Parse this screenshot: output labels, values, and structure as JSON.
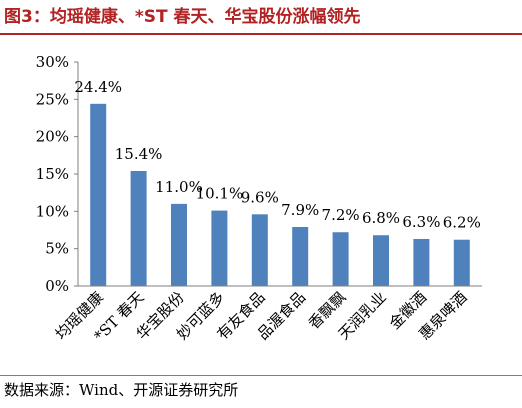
{
  "header": {
    "title": "图3：均瑶健康、*ST 春天、华宝股份涨幅领先"
  },
  "footer": {
    "source": "数据来源：Wind、开源证券研究所"
  },
  "colors": {
    "title": "#B22222",
    "rule": "#B22222",
    "bar": "#4F81BD",
    "axis": "#7F7F7F",
    "text": "#000000"
  },
  "chart_data": {
    "type": "bar",
    "categories": [
      "均瑶健康",
      "*ST 春天",
      "华宝股份",
      "妙可蓝多",
      "有友食品",
      "品渥食品",
      "香飘飘",
      "天润乳业",
      "金徽酒",
      "惠泉啤酒"
    ],
    "values": [
      24.4,
      15.4,
      11.0,
      10.1,
      9.6,
      7.9,
      7.2,
      6.8,
      6.3,
      6.2
    ],
    "data_labels": [
      "24.4%",
      "15.4%",
      "11.0%",
      "10.1%",
      "9.6%",
      "7.9%",
      "7.2%",
      "6.8%",
      "6.3%",
      "6.2%"
    ],
    "y_ticks": [
      "0%",
      "5%",
      "10%",
      "15%",
      "20%",
      "25%",
      "30%"
    ],
    "ylim": [
      0,
      30
    ],
    "grid": false,
    "legend": false
  }
}
